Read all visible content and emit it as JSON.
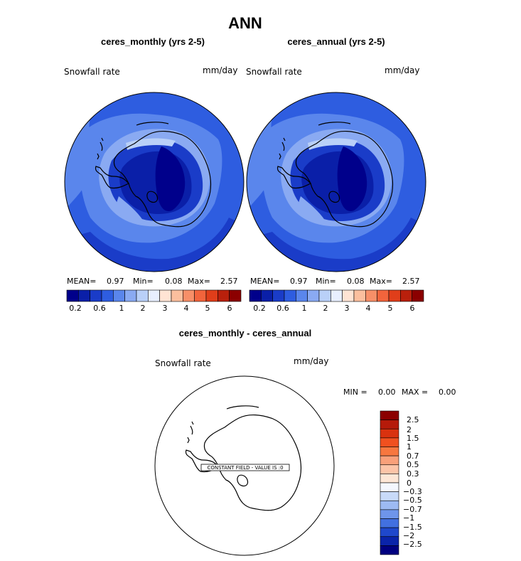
{
  "page": {
    "title": "ANN"
  },
  "panels": [
    {
      "id": "left",
      "header": "ceres_monthly (yrs 2-5)",
      "variable": "Snowfall rate",
      "units": "mm/day",
      "stats": {
        "mean_label": "MEAN=",
        "mean": "0.97",
        "min_label": "Min=",
        "min": "0.08",
        "max_label": "Max=",
        "max": "2.57"
      },
      "colorbar_ticks": [
        "0.2",
        "0.6",
        "1",
        "2",
        "3",
        "4",
        "5",
        "6"
      ]
    },
    {
      "id": "right",
      "header": "ceres_annual (yrs 2-5)",
      "variable": "Snowfall rate",
      "units": "mm/day",
      "stats": {
        "mean_label": "MEAN=",
        "mean": "0.97",
        "min_label": "Min=",
        "min": "0.08",
        "max_label": "Max=",
        "max": "2.57"
      },
      "colorbar_ticks": [
        "0.2",
        "0.6",
        "1",
        "2",
        "3",
        "4",
        "5",
        "6"
      ]
    }
  ],
  "diff_panel": {
    "header": "ceres_monthly - ceres_annual",
    "variable": "Snowfall rate",
    "units": "mm/day",
    "stats": {
      "min_label": "MIN =",
      "min": "0.00",
      "max_label": "MAX =",
      "max": "0.00"
    },
    "constant_note": "CONSTANT FIELD - VALUE IS :0",
    "colorbar_labels": [
      "2.5",
      "2",
      "1.5",
      "1",
      "0.7",
      "0.5",
      "0.3",
      "0",
      "−0.3",
      "−0.5",
      "−0.7",
      "−1",
      "−1.5",
      "−2",
      "−2.5"
    ]
  },
  "colors": {
    "seq_scale": [
      "#00008b",
      "#0a1fa8",
      "#1a3cc8",
      "#2e5de0",
      "#5a86ec",
      "#8aaaf2",
      "#b9d0f8",
      "#e8efff",
      "#ffe4d4",
      "#fbbf9e",
      "#f78f68",
      "#f2643c",
      "#e03e1a",
      "#b9200c",
      "#8b0000"
    ],
    "div_scale": [
      "#8b0000",
      "#b51a0a",
      "#d9320f",
      "#f0501f",
      "#f7773f",
      "#f9a07a",
      "#fcc4a8",
      "#fde6d6",
      "#f4f7fe",
      "#c8daf8",
      "#9dbaf2",
      "#6e95ea",
      "#4270e0",
      "#1f48cc",
      "#0a24aa",
      "#000080"
    ]
  }
}
